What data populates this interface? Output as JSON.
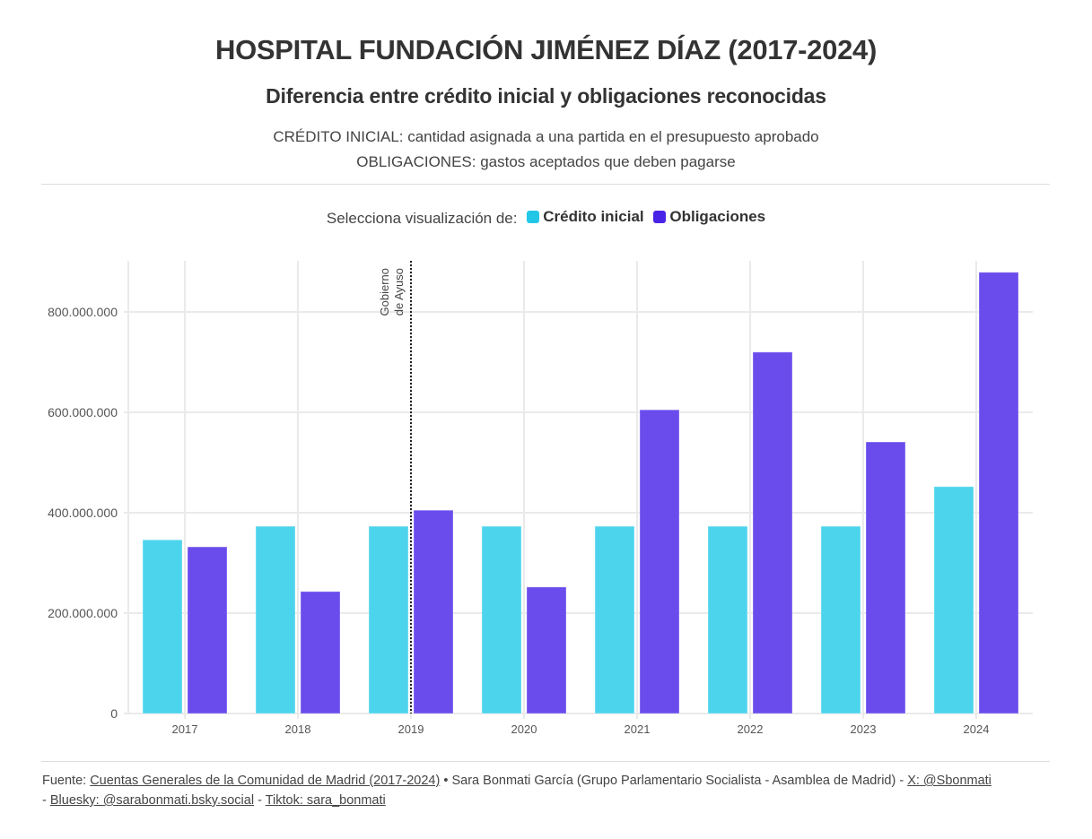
{
  "header": {
    "title": "HOSPITAL FUNDACIÓN JIMÉNEZ DÍAZ (2017-2024)",
    "subtitle": "Diferencia entre crédito inicial y obligaciones reconocidas",
    "description_line1": "CRÉDITO INICIAL: cantidad asignada a una partida en el presupuesto aprobado",
    "description_line2": "OBLIGACIONES: gastos aceptados que deben pagarse"
  },
  "legend": {
    "prompt": "Selecciona visualización de:",
    "items": [
      {
        "label": "Crédito inicial",
        "color": "#22c7e8"
      },
      {
        "label": "Obligaciones",
        "color": "#4a24e6"
      }
    ]
  },
  "chart_data": {
    "type": "bar",
    "title": "HOSPITAL FUNDACIÓN JIMÉNEZ DÍAZ (2017-2024)",
    "xlabel": "",
    "ylabel": "",
    "categories": [
      "2017",
      "2018",
      "2019",
      "2020",
      "2021",
      "2022",
      "2023",
      "2024"
    ],
    "series": [
      {
        "name": "Crédito inicial",
        "color": "#4dd4ed",
        "values": [
          346000000,
          373000000,
          373000000,
          373000000,
          373000000,
          373000000,
          373000000,
          452000000
        ]
      },
      {
        "name": "Obligaciones",
        "color": "#6a4ced",
        "values": [
          332000000,
          243000000,
          405000000,
          252000000,
          605000000,
          720000000,
          541000000,
          879000000
        ]
      }
    ],
    "ylim": [
      0,
      900000000
    ],
    "yticks": [
      0,
      200000000,
      400000000,
      600000000,
      800000000
    ],
    "ytick_labels": [
      "0",
      "200.000.000",
      "400.000.000",
      "600.000.000",
      "800.000.000"
    ],
    "grid": true,
    "legend_position": "top-center",
    "annotations": [
      {
        "type": "vertical-dotted-line",
        "x": "2019",
        "text_line1": "Gobierno",
        "text_line2": "de Ayuso"
      }
    ]
  },
  "footer": {
    "source_prefix": "Fuente: ",
    "source_link": "Cuentas Generales de la Comunidad de Madrid (2017-2024)",
    "bullet": " • ",
    "author_text": "Sara Bonmati García (Grupo Parlamentario Socialista - Asamblea de Madrid) - ",
    "x_link": "X: @Sbonmati",
    "sep1": " - ",
    "bluesky_link": "Bluesky: @sarabonmati.bsky.social",
    "sep2": " - ",
    "tiktok_link": "Tiktok: sara_bonmati"
  }
}
